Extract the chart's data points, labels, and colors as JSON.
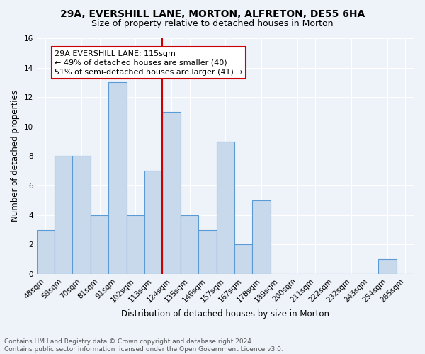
{
  "title1": "29A, EVERSHILL LANE, MORTON, ALFRETON, DE55 6HA",
  "title2": "Size of property relative to detached houses in Morton",
  "xlabel": "Distribution of detached houses by size in Morton",
  "ylabel": "Number of detached properties",
  "categories": [
    "48sqm",
    "59sqm",
    "70sqm",
    "81sqm",
    "91sqm",
    "102sqm",
    "113sqm",
    "124sqm",
    "135sqm",
    "146sqm",
    "157sqm",
    "167sqm",
    "178sqm",
    "189sqm",
    "200sqm",
    "211sqm",
    "222sqm",
    "232sqm",
    "243sqm",
    "254sqm",
    "265sqm"
  ],
  "values": [
    3,
    8,
    8,
    4,
    13,
    4,
    7,
    11,
    4,
    3,
    9,
    2,
    5,
    0,
    0,
    0,
    0,
    0,
    0,
    1,
    0
  ],
  "bar_color": "#c9d9ec",
  "bar_edge_color": "#5b9bd5",
  "vline_x": 6.5,
  "vline_color": "#cc0000",
  "annotation_text": "29A EVERSHILL LANE: 115sqm\n← 49% of detached houses are smaller (40)\n51% of semi-detached houses are larger (41) →",
  "annotation_box_color": "#ffffff",
  "annotation_box_edge": "#cc0000",
  "ylim": [
    0,
    16
  ],
  "yticks": [
    0,
    2,
    4,
    6,
    8,
    10,
    12,
    14,
    16
  ],
  "footer1": "Contains HM Land Registry data © Crown copyright and database right 2024.",
  "footer2": "Contains public sector information licensed under the Open Government Licence v3.0.",
  "bg_color": "#eef2f9",
  "grid_color": "#ffffff",
  "title1_fontsize": 10,
  "title2_fontsize": 9,
  "xlabel_fontsize": 8.5,
  "ylabel_fontsize": 8.5,
  "tick_fontsize": 7.5,
  "footer_fontsize": 6.5,
  "ann_fontsize": 8.0
}
